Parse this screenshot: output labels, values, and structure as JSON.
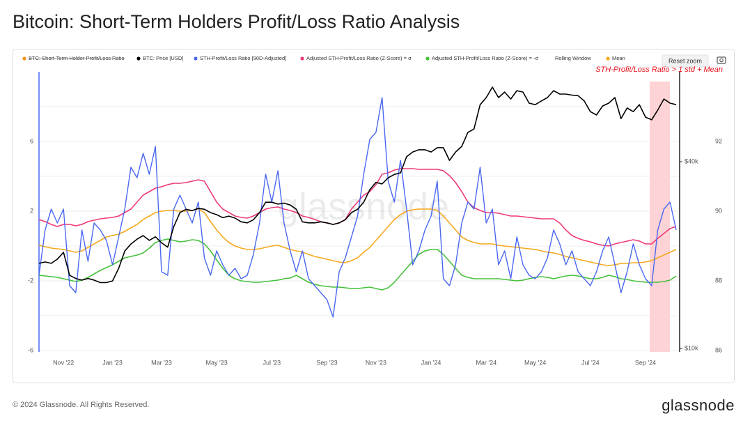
{
  "title": "Bitcoin: Short-Term Holders Profit/Loss Ratio Analysis",
  "footer": {
    "copyright": "© 2024 Glassnode. All Rights Reserved.",
    "logo": "glassnode"
  },
  "chart_data": {
    "type": "line",
    "watermark": "glassnode",
    "reset_zoom": "Reset zoom",
    "annotation": "STH-Profit/Loss Ratio > 1 std + Mean",
    "legend_extra": [
      {
        "name": "BTC: Short-Term Holder Profit/Loss Ratio",
        "color": "#f7931a",
        "hidden": true
      },
      {
        "name": "Rolling Window"
      }
    ],
    "categories": [
      null,
      null,
      null,
      null,
      "Nov '22",
      null,
      null,
      null,
      null,
      null,
      null,
      null,
      "Jan '23",
      null,
      null,
      null,
      null,
      null,
      null,
      null,
      "Mar '23",
      null,
      null,
      null,
      null,
      null,
      null,
      null,
      null,
      "May '23",
      null,
      null,
      null,
      null,
      null,
      null,
      null,
      null,
      "Jul '23",
      null,
      null,
      null,
      null,
      null,
      null,
      null,
      null,
      "Sep '23",
      null,
      null,
      null,
      null,
      null,
      null,
      null,
      "Nov '23",
      null,
      null,
      null,
      null,
      null,
      null,
      null,
      null,
      "Jan '24",
      null,
      null,
      null,
      null,
      null,
      null,
      null,
      null,
      "Mar '24",
      null,
      null,
      null,
      null,
      null,
      null,
      null,
      "May '24",
      null,
      null,
      null,
      null,
      null,
      null,
      null,
      null,
      "Jul '24",
      null,
      null,
      null,
      null,
      null,
      null,
      null,
      null,
      "Sep '24",
      null,
      null,
      null,
      null,
      null
    ],
    "ylim": [
      -6,
      10
    ],
    "yticks": [
      -6,
      -2,
      2,
      6
    ],
    "minor_yticks": [
      -4,
      0,
      4,
      8
    ],
    "y2lim": [
      9840,
      78000
    ],
    "y2log": true,
    "y2ticks": [
      {
        "value": 10000,
        "label": "$10k"
      },
      {
        "value": 40000,
        "label": "$40k"
      }
    ],
    "y3lim": [
      86,
      94
    ],
    "y3ticks": [
      86,
      88,
      90,
      92
    ],
    "grid": true,
    "series": [
      {
        "name": "BTC: Price [USD]",
        "color": "#000000",
        "axis": "y2",
        "values": [
          18800,
          19000,
          18800,
          19400,
          20400,
          17200,
          16800,
          16600,
          16800,
          16600,
          16300,
          16300,
          16500,
          18100,
          20600,
          21700,
          22500,
          23100,
          22300,
          22900,
          21900,
          21200,
          24700,
          27400,
          28100,
          27800,
          28300,
          28100,
          27400,
          27000,
          26400,
          26700,
          26300,
          25600,
          25400,
          26000,
          27400,
          29600,
          29600,
          29200,
          29400,
          29000,
          28100,
          25600,
          25400,
          25400,
          25600,
          25400,
          25100,
          25400,
          26000,
          27400,
          28100,
          29600,
          32500,
          34300,
          33900,
          35500,
          36400,
          36800,
          41500,
          43000,
          43700,
          43700,
          43000,
          44400,
          44400,
          40400,
          43000,
          44800,
          49700,
          51000,
          61100,
          64400,
          69600,
          64400,
          67100,
          63700,
          67800,
          67100,
          61800,
          61100,
          62800,
          64400,
          67800,
          66100,
          66100,
          65600,
          65300,
          62800,
          58000,
          56600,
          60500,
          61800,
          64400,
          55100,
          59600,
          58000,
          61100,
          55700,
          54600,
          58700,
          63700,
          61800,
          61100
        ]
      },
      {
        "name": "STH-Profit/Loss Ratio [90D-Adjusted]",
        "color": "#4a68f2",
        "values": [
          -1.68,
          0.92,
          2.12,
          1.32,
          2.12,
          -2.28,
          -2.68,
          0.92,
          -0.88,
          1.32,
          0.92,
          0.32,
          -1.08,
          0.52,
          2.12,
          4.52,
          3.92,
          5.32,
          4.12,
          5.72,
          -1.48,
          -1.68,
          2.12,
          2.92,
          2.12,
          1.32,
          2.52,
          -0.68,
          -1.68,
          -0.28,
          -1.08,
          -1.68,
          -1.28,
          -1.88,
          -1.68,
          -0.48,
          1.32,
          4.12,
          2.52,
          4.32,
          1.32,
          -0.28,
          -1.48,
          -0.28,
          -1.88,
          -2.28,
          -2.68,
          -3.08,
          -4.08,
          -1.48,
          -0.68,
          0.52,
          1.72,
          4.12,
          6.12,
          6.52,
          8.52,
          3.72,
          2.52,
          4.92,
          2.12,
          -1.08,
          -0.28,
          0.92,
          1.72,
          3.72,
          -1.88,
          -2.28,
          -1.08,
          1.32,
          2.52,
          2.12,
          4.52,
          1.32,
          2.12,
          -1.08,
          -0.28,
          -1.88,
          0.52,
          -1.08,
          -1.68,
          -1.88,
          -1.48,
          -0.68,
          0.92,
          0.12,
          -1.08,
          -0.28,
          -1.48,
          -1.88,
          -2.28,
          -1.48,
          -0.28,
          0.52,
          -1.08,
          -2.68,
          -1.48,
          0.12,
          -1.08,
          -1.88,
          -2.28,
          0.92,
          2.12,
          2.52,
          0.92
        ]
      },
      {
        "name": "Adjusted STH-Profit/Loss Ratio (Z-Score) = σ",
        "color": "#ee3a78",
        "values": [
          1.52,
          1.4,
          1.24,
          1.12,
          1.24,
          1.24,
          1.16,
          1.24,
          1.4,
          1.48,
          1.56,
          1.6,
          1.64,
          1.72,
          1.92,
          2.12,
          2.52,
          2.92,
          3.12,
          3.32,
          3.4,
          3.52,
          3.6,
          3.6,
          3.64,
          3.72,
          3.8,
          3.72,
          3.12,
          2.52,
          2.12,
          1.92,
          1.72,
          1.64,
          1.6,
          1.72,
          1.92,
          2.12,
          2.2,
          2.24,
          2.12,
          2.04,
          1.92,
          1.72,
          1.64,
          1.52,
          1.4,
          1.32,
          1.24,
          1.32,
          1.52,
          2.12,
          2.52,
          2.92,
          3.12,
          3.52,
          4.12,
          4.2,
          4.36,
          4.44,
          4.44,
          4.44,
          4.4,
          4.4,
          4.4,
          4.4,
          4.32,
          4.04,
          3.64,
          3.12,
          2.52,
          2.2,
          2.04,
          1.92,
          1.92,
          1.88,
          1.8,
          1.72,
          1.72,
          1.68,
          1.64,
          1.6,
          1.56,
          1.56,
          1.56,
          1.32,
          0.92,
          0.6,
          0.44,
          0.32,
          0.24,
          0.12,
          0.04,
          0,
          0.12,
          0.2,
          0.28,
          0.36,
          0.28,
          0.12,
          0.12,
          0.44,
          0.72,
          1.0,
          1.12
        ]
      },
      {
        "name": "Adjusted STH-Profit/Loss Ratio (Z-Score) = -σ",
        "color": "#45c03a",
        "values": [
          -1.68,
          -1.72,
          -1.76,
          -1.8,
          -1.88,
          -1.96,
          -2.04,
          -1.96,
          -1.8,
          -1.6,
          -1.4,
          -1.24,
          -1.08,
          -0.88,
          -0.68,
          -0.6,
          -0.52,
          -0.4,
          -0.12,
          0.2,
          0.32,
          0.4,
          0.32,
          0.24,
          0.28,
          0.36,
          0.32,
          0.12,
          -0.28,
          -0.8,
          -1.28,
          -1.68,
          -1.88,
          -2.0,
          -2.04,
          -2.08,
          -2.08,
          -2.04,
          -2.0,
          -1.96,
          -1.88,
          -1.84,
          -1.68,
          -1.88,
          -2.08,
          -2.2,
          -2.28,
          -2.32,
          -2.36,
          -2.36,
          -2.4,
          -2.44,
          -2.44,
          -2.4,
          -2.36,
          -2.44,
          -2.52,
          -2.4,
          -2.08,
          -1.68,
          -1.28,
          -0.88,
          -0.48,
          -0.28,
          -0.2,
          -0.2,
          -0.48,
          -0.88,
          -1.28,
          -1.68,
          -1.8,
          -1.88,
          -1.88,
          -1.88,
          -1.88,
          -1.88,
          -1.92,
          -1.96,
          -2.0,
          -1.96,
          -1.88,
          -1.8,
          -1.76,
          -1.8,
          -1.88,
          -1.8,
          -1.72,
          -1.68,
          -1.72,
          -1.8,
          -1.88,
          -1.88,
          -1.8,
          -1.68,
          -1.76,
          -1.88,
          -1.92,
          -2.0,
          -2.04,
          -2.08,
          -2.08,
          -2.08,
          -2.04,
          -1.96,
          -1.72
        ]
      },
      {
        "name": "Mean",
        "color": "#f5a81c",
        "values": [
          0.04,
          -0.04,
          -0.12,
          -0.16,
          -0.2,
          -0.28,
          -0.36,
          -0.28,
          -0.08,
          0.12,
          0.32,
          0.52,
          0.6,
          0.68,
          0.84,
          1.04,
          1.24,
          1.52,
          1.72,
          1.92,
          2.0,
          2.04,
          2.04,
          2.0,
          2.0,
          2.04,
          2.12,
          1.92,
          1.4,
          0.92,
          0.52,
          0.2,
          0,
          -0.12,
          -0.2,
          -0.2,
          -0.16,
          -0.08,
          0,
          0.04,
          -0.08,
          -0.2,
          -0.28,
          -0.36,
          -0.48,
          -0.6,
          -0.68,
          -0.76,
          -0.84,
          -0.92,
          -0.96,
          -0.84,
          -0.68,
          -0.36,
          -0.08,
          0.32,
          0.72,
          1.12,
          1.52,
          1.8,
          2.0,
          2.08,
          2.12,
          2.12,
          2.12,
          2.04,
          1.72,
          1.32,
          0.92,
          0.52,
          0.32,
          0.2,
          0.12,
          0.12,
          0.12,
          0.04,
          0,
          -0.04,
          -0.08,
          -0.12,
          -0.16,
          -0.2,
          -0.28,
          -0.36,
          -0.4,
          -0.48,
          -0.6,
          -0.68,
          -0.76,
          -0.84,
          -0.92,
          -1.0,
          -1.08,
          -1.12,
          -1.08,
          -1.0,
          -1.0,
          -0.96,
          -0.96,
          -0.92,
          -0.84,
          -0.68,
          -0.52,
          -0.36,
          -0.2
        ]
      }
    ]
  }
}
